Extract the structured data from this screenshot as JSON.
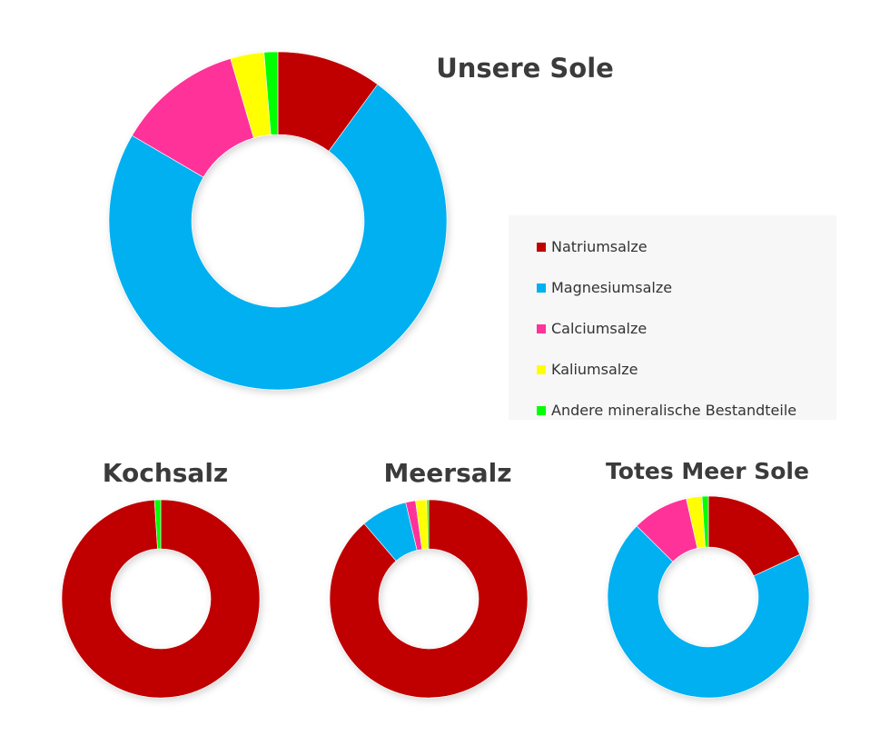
{
  "chart_data": {
    "type": "donut",
    "categories": [
      "Natriumsalze",
      "Magnesiumsalze",
      "Calciumsalze",
      "Kaliumsalze",
      "Andere mineralische Bestandteile"
    ],
    "colors": [
      "#c00000",
      "#00b0f0",
      "#ff3399",
      "#ffff00",
      "#00ff00"
    ],
    "legend": {
      "position": "right"
    },
    "charts": [
      {
        "id": "unsere-sole",
        "title": "Unsere Sole",
        "values": [
          10,
          73,
          12,
          3.2,
          1.3
        ]
      },
      {
        "id": "kochsalz",
        "title": "Kochsalz",
        "values": [
          99,
          0,
          0,
          0,
          1
        ]
      },
      {
        "id": "meersalz",
        "title": "Meersalz",
        "values": [
          88,
          7.5,
          1.6,
          1.8,
          0.3
        ]
      },
      {
        "id": "totes-meer-sole",
        "title": "Totes Meer Sole",
        "values": [
          18,
          69,
          9,
          2.5,
          1
        ]
      }
    ]
  }
}
